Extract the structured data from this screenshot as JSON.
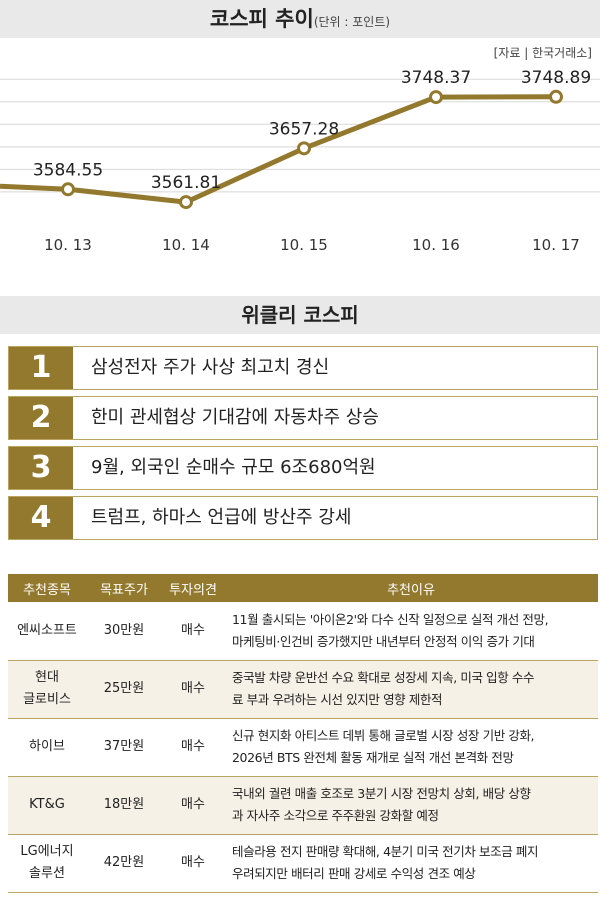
{
  "header": {
    "title": "코스피 추이",
    "unit": "(단위 : 포인트)",
    "source": "[자료 | 한국거래소]"
  },
  "colors": {
    "accent": "#93792e",
    "grid": "#d8d8d8",
    "panel": "#e9e9e9"
  },
  "chart_data": {
    "type": "line",
    "categories": [
      "10. 13",
      "10. 14",
      "10. 15",
      "10. 16",
      "10. 17"
    ],
    "values": [
      3584.55,
      3561.81,
      3657.28,
      3748.37,
      3748.89
    ],
    "value_labels": [
      "3584.55",
      "3561.81",
      "3657.28",
      "3748.37",
      "3748.89"
    ],
    "title": "코스피 추이",
    "ylim": [
      3530,
      3800
    ],
    "grid": true,
    "color": "#93792e"
  },
  "weekly": {
    "title": "위클리 코스피",
    "items": [
      {
        "num": "1",
        "text": "삼성전자 주가 사상 최고치 경신"
      },
      {
        "num": "2",
        "text": "한미 관세협상 기대감에 자동차주 상승"
      },
      {
        "num": "3",
        "text": "9월, 외국인 순매수 규모 6조680억원"
      },
      {
        "num": "4",
        "text": "트럼프, 하마스 언급에 방산주 강세"
      }
    ]
  },
  "table": {
    "headers": [
      "추천종목",
      "목표주가",
      "투자의견",
      "추천이유"
    ],
    "rows": [
      {
        "name1": "엔씨소프트",
        "name2": "",
        "target": "30만원",
        "opinion": "매수",
        "reason1": "11월 출시되는 '아이온2'와 다수 신작 일정으로 실적 개선 전망,",
        "reason2": "마케팅비·인건비 증가했지만 내년부터 안정적 이익 증가 기대"
      },
      {
        "name1": "현대",
        "name2": "글로비스",
        "target": "25만원",
        "opinion": "매수",
        "reason1": "중국발 차량 운반선 수요 확대로 성장세 지속, 미국 입항 수수",
        "reason2": "료 부과 우려하는 시선 있지만 영향 제한적"
      },
      {
        "name1": "하이브",
        "name2": "",
        "target": "37만원",
        "opinion": "매수",
        "reason1": "신규 현지화 아티스트 데뷔 통해 글로벌 시장 성장 기반 강화,",
        "reason2": "2026년 BTS 완전체 활동 재개로 실적 개선 본격화 전망"
      },
      {
        "name1": "KT&G",
        "name2": "",
        "target": "18만원",
        "opinion": "매수",
        "reason1": "국내외 궐련 매출 호조로 3분기 시장 전망치 상회, 배당 상향",
        "reason2": "과 자사주 소각으로 주주환원 강화할 예정"
      },
      {
        "name1": "LG에너지",
        "name2": "솔루션",
        "target": "42만원",
        "opinion": "매수",
        "reason1": "테슬라용 전지 판매량 확대해, 4분기 미국 전기차 보조금 폐지",
        "reason2": "우려되지만 배터리 판매 강세로 수익성 견조 예상"
      }
    ]
  }
}
